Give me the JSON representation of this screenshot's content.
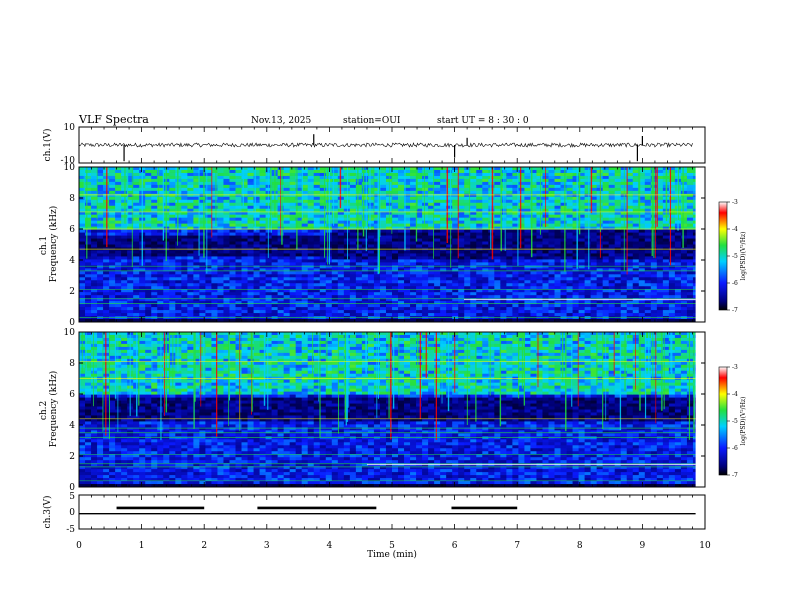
{
  "header": {
    "title": "VLF Spectra",
    "date": "Nov.13, 2025",
    "station": "station=OUI",
    "start_ut": "start  UT =  8 : 30 : 0"
  },
  "colors": {
    "c_black": "#000000",
    "c_navy": "#00007a",
    "c_blue": "#0a1aff",
    "c_cyan": "#00d0ff",
    "c_green": "#22e040",
    "c_yellow": "#ffff00",
    "c_red": "#ff0000",
    "c_white": "#ffffff"
  },
  "chart_data": [
    {
      "type": "line",
      "name": "ch1-waveform",
      "ylabel": "ch.1(V)",
      "ylim": [
        -10,
        10
      ],
      "yticks": [
        "10",
        "-10"
      ],
      "xlim": [
        0,
        10
      ],
      "baseline": 0,
      "spikes": [
        {
          "t": 0.72,
          "v": -9
        },
        {
          "t": 3.75,
          "v": 6
        },
        {
          "t": 6.0,
          "v": -7
        },
        {
          "t": 6.2,
          "v": 4
        },
        {
          "t": 8.92,
          "v": -9
        },
        {
          "t": 9.0,
          "v": 5
        }
      ]
    },
    {
      "type": "heatmap",
      "name": "ch1-spectrogram",
      "ylabel": "ch.1 Frequency (kHz)",
      "ylim": [
        0,
        10
      ],
      "yticks": [
        "0",
        "2",
        "4",
        "6",
        "8",
        "10"
      ],
      "colorbar": {
        "label": "log(PSD)(V²/Hz)",
        "ticks": [
          "-3",
          "-4",
          "-5",
          "-6",
          "-7"
        ],
        "range": [
          -7,
          -3
        ]
      },
      "dark_band_khz": [
        4.2,
        5.6
      ],
      "dark_band_khz_after_4min": [
        4.0,
        6.0
      ],
      "strong_lines_khz": [
        0.3,
        1.2,
        1.5,
        2.1,
        3.3,
        3.6,
        4.7,
        6.0,
        7.1,
        8.2
      ],
      "switch_time_min": 6.15
    },
    {
      "type": "heatmap",
      "name": "ch2-spectrogram",
      "ylabel": "ch.2 Frequency (kHz)",
      "ylim": [
        0,
        10
      ],
      "yticks": [
        "0",
        "2",
        "4",
        "6",
        "8",
        "10"
      ],
      "colorbar": {
        "label": "log(PSD)(V²/Hz)",
        "ticks": [
          "-3",
          "-4",
          "-5",
          "-6",
          "-7"
        ],
        "range": [
          -7,
          -3
        ]
      },
      "dark_band_khz": [
        4.3,
        5.8
      ],
      "strong_lines_khz": [
        0.4,
        1.3,
        1.5,
        2.1,
        3.2,
        3.5,
        3.8,
        4.4,
        7.0,
        8.1
      ],
      "switch_time_min": 4.6
    },
    {
      "type": "line",
      "name": "ch3-signal",
      "ylabel": "ch.3(V)",
      "ylim": [
        -5,
        5
      ],
      "yticks": [
        "5",
        "0",
        "-5"
      ],
      "baseline": -0.5,
      "high_level": 1.2,
      "pulses_min": [
        [
          0.6,
          2.0
        ],
        [
          2.85,
          4.75
        ],
        [
          5.95,
          7.0
        ]
      ]
    }
  ],
  "xaxis": {
    "label": "Time (min)",
    "range": [
      0,
      10
    ],
    "ticks": [
      "0",
      "1",
      "2",
      "3",
      "4",
      "5",
      "6",
      "7",
      "8",
      "9",
      "10"
    ]
  }
}
